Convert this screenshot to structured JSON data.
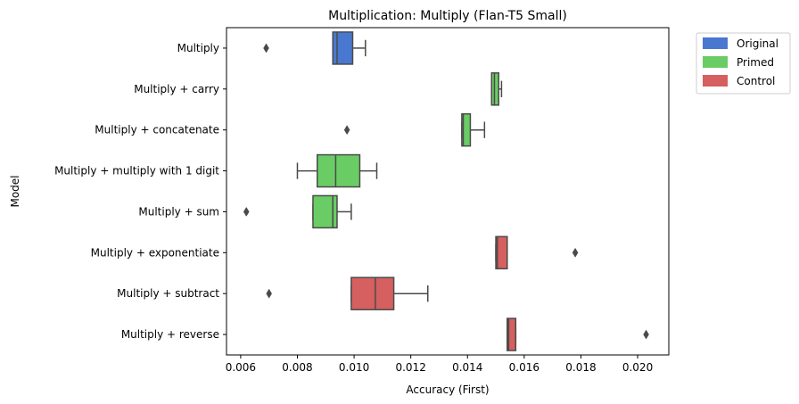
{
  "chart_data": {
    "type": "box",
    "orientation": "horizontal",
    "title": "Multiplication: Multiply (Flan-T5 Small)",
    "xlabel": "Accuracy (First)",
    "ylabel": "Model",
    "xlim": [
      0.0055,
      0.0211
    ],
    "xticks": [
      0.006,
      0.008,
      0.01,
      0.012,
      0.014,
      0.016,
      0.018,
      0.02
    ],
    "xtick_labels": [
      "0.006",
      "0.008",
      "0.010",
      "0.012",
      "0.014",
      "0.016",
      "0.018",
      "0.020"
    ],
    "grid": false,
    "legend_position": "outside-top-right",
    "legend": [
      {
        "label": "Original",
        "color": "#4878d0"
      },
      {
        "label": "Primed",
        "color": "#6acc64"
      },
      {
        "label": "Control",
        "color": "#d65f5f"
      }
    ],
    "groups": [
      {
        "label": "Multiply",
        "group": "Original",
        "color": "#4878d0",
        "whislo": 0.00925,
        "q1": 0.00925,
        "med": 0.0094,
        "q3": 0.00995,
        "whishi": 0.0104,
        "fliers": [
          0.0069
        ]
      },
      {
        "label": "Multiply + carry",
        "group": "Primed",
        "color": "#6acc64",
        "whislo": 0.01485,
        "q1": 0.01485,
        "med": 0.01495,
        "q3": 0.0151,
        "whishi": 0.0152,
        "fliers": []
      },
      {
        "label": "Multiply + concatenate",
        "group": "Primed",
        "color": "#6acc64",
        "whislo": 0.0138,
        "q1": 0.0138,
        "med": 0.01385,
        "q3": 0.0141,
        "whishi": 0.0146,
        "fliers": [
          0.00975
        ]
      },
      {
        "label": "Multiply + multiply with 1 digit",
        "group": "Primed",
        "color": "#6acc64",
        "whislo": 0.008,
        "q1": 0.0087,
        "med": 0.00935,
        "q3": 0.0102,
        "whishi": 0.0108,
        "fliers": []
      },
      {
        "label": "Multiply + sum",
        "group": "Primed",
        "color": "#6acc64",
        "whislo": 0.00855,
        "q1": 0.00855,
        "med": 0.00925,
        "q3": 0.0094,
        "whishi": 0.0099,
        "fliers": [
          0.0062
        ]
      },
      {
        "label": "Multiply + exponentiate",
        "group": "Control",
        "color": "#d65f5f",
        "whislo": 0.015,
        "q1": 0.015,
        "med": 0.01505,
        "q3": 0.0154,
        "whishi": 0.0154,
        "fliers": [
          0.0178
        ]
      },
      {
        "label": "Multiply + subtract",
        "group": "Control",
        "color": "#d65f5f",
        "whislo": 0.0099,
        "q1": 0.0099,
        "med": 0.01075,
        "q3": 0.0114,
        "whishi": 0.0126,
        "fliers": [
          0.007
        ]
      },
      {
        "label": "Multiply + reverse",
        "group": "Control",
        "color": "#d65f5f",
        "whislo": 0.0154,
        "q1": 0.0154,
        "med": 0.01545,
        "q3": 0.0157,
        "whishi": 0.0157,
        "fliers": [
          0.0203
        ]
      }
    ]
  }
}
